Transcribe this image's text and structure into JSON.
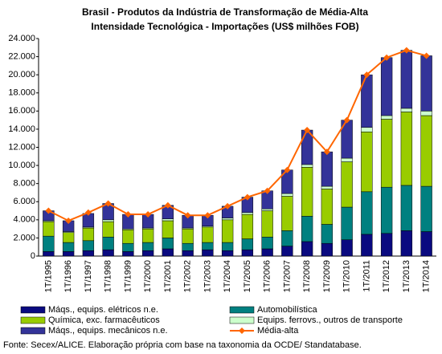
{
  "chart_data": {
    "type": "bar",
    "stacked": true,
    "title": [
      "Brasil - Produtos da Indústria de Transformação de Média-Alta",
      "Intensidade Tecnológica - Importações (US$ milhões FOB)"
    ],
    "categories": [
      "1T/1995",
      "1T/1996",
      "1T/1997",
      "1T/1998",
      "1T/1999",
      "1T/2000",
      "1T/2001",
      "1T/2002",
      "1T/2003",
      "1T/2004",
      "1T/2005",
      "1T/2006",
      "1T/2007",
      "1T/2008",
      "1T/2009",
      "1T/2010",
      "1T/2011",
      "1T/2012",
      "1T/2013",
      "1T/2014"
    ],
    "series": [
      {
        "name": "Máqs., equips. elétricos n.e.",
        "color": "#0a0a80",
        "type": "bar",
        "values": [
          500,
          500,
          600,
          700,
          500,
          600,
          800,
          600,
          700,
          600,
          700,
          800,
          1100,
          1600,
          1400,
          1800,
          2400,
          2500,
          2800,
          2700
        ]
      },
      {
        "name": "Automobilística",
        "color": "#008080",
        "type": "bar",
        "values": [
          1700,
          1000,
          1100,
          1400,
          900,
          900,
          1200,
          800,
          800,
          900,
          1200,
          1300,
          1700,
          2800,
          2100,
          3600,
          4700,
          5100,
          5000,
          5000
        ]
      },
      {
        "name": "Química, exc. farmacêuticos",
        "color": "#99cc00",
        "type": "bar",
        "values": [
          1600,
          1100,
          1400,
          1700,
          1500,
          1500,
          1900,
          1600,
          1700,
          2500,
          2700,
          2900,
          3800,
          5400,
          3900,
          5000,
          6600,
          7500,
          8100,
          7800
        ]
      },
      {
        "name": "Equips. ferrovs., outros de transporte",
        "color": "#ccffcc",
        "type": "bar",
        "values": [
          100,
          100,
          100,
          200,
          100,
          100,
          200,
          100,
          100,
          200,
          200,
          200,
          300,
          300,
          300,
          400,
          500,
          400,
          400,
          500
        ]
      },
      {
        "name": "Máqs., equips. mecânicos n.e.",
        "color": "#333399",
        "type": "bar",
        "values": [
          1100,
          1200,
          1500,
          1800,
          1600,
          1500,
          1500,
          1400,
          1200,
          1300,
          1700,
          2000,
          2600,
          3800,
          3800,
          4200,
          5800,
          6400,
          6400,
          6100
        ]
      },
      {
        "name": "Média-alta",
        "color": "#ff6600",
        "type": "line",
        "values": [
          5000,
          3900,
          4800,
          5800,
          4600,
          4600,
          5600,
          4500,
          4500,
          5500,
          6500,
          7200,
          9500,
          13900,
          11500,
          15000,
          20000,
          21900,
          22700,
          22100
        ]
      }
    ],
    "ylim": [
      0,
      24000
    ],
    "yticks": [
      0,
      {
        "value": 2000,
        "label": "2.000"
      },
      {
        "value": 4000,
        "label": "4.000"
      },
      {
        "value": 6000,
        "label": "6.000"
      },
      {
        "value": 8000,
        "label": "8.000"
      },
      {
        "value": 10000,
        "label": "10.000"
      },
      {
        "value": 12000,
        "label": "12.000"
      },
      {
        "value": 14000,
        "label": "14.000"
      },
      {
        "value": 16000,
        "label": "16.000"
      },
      {
        "value": 18000,
        "label": "18.000"
      },
      {
        "value": 20000,
        "label": "20.000"
      },
      {
        "value": 22000,
        "label": "22.000"
      },
      {
        "value": 24000,
        "label": "24.000"
      }
    ],
    "grid": false,
    "source": "Fonte: Secex/ALICE. Elaboração própria com base na taxonomia da OCDE/ Standatabase."
  }
}
